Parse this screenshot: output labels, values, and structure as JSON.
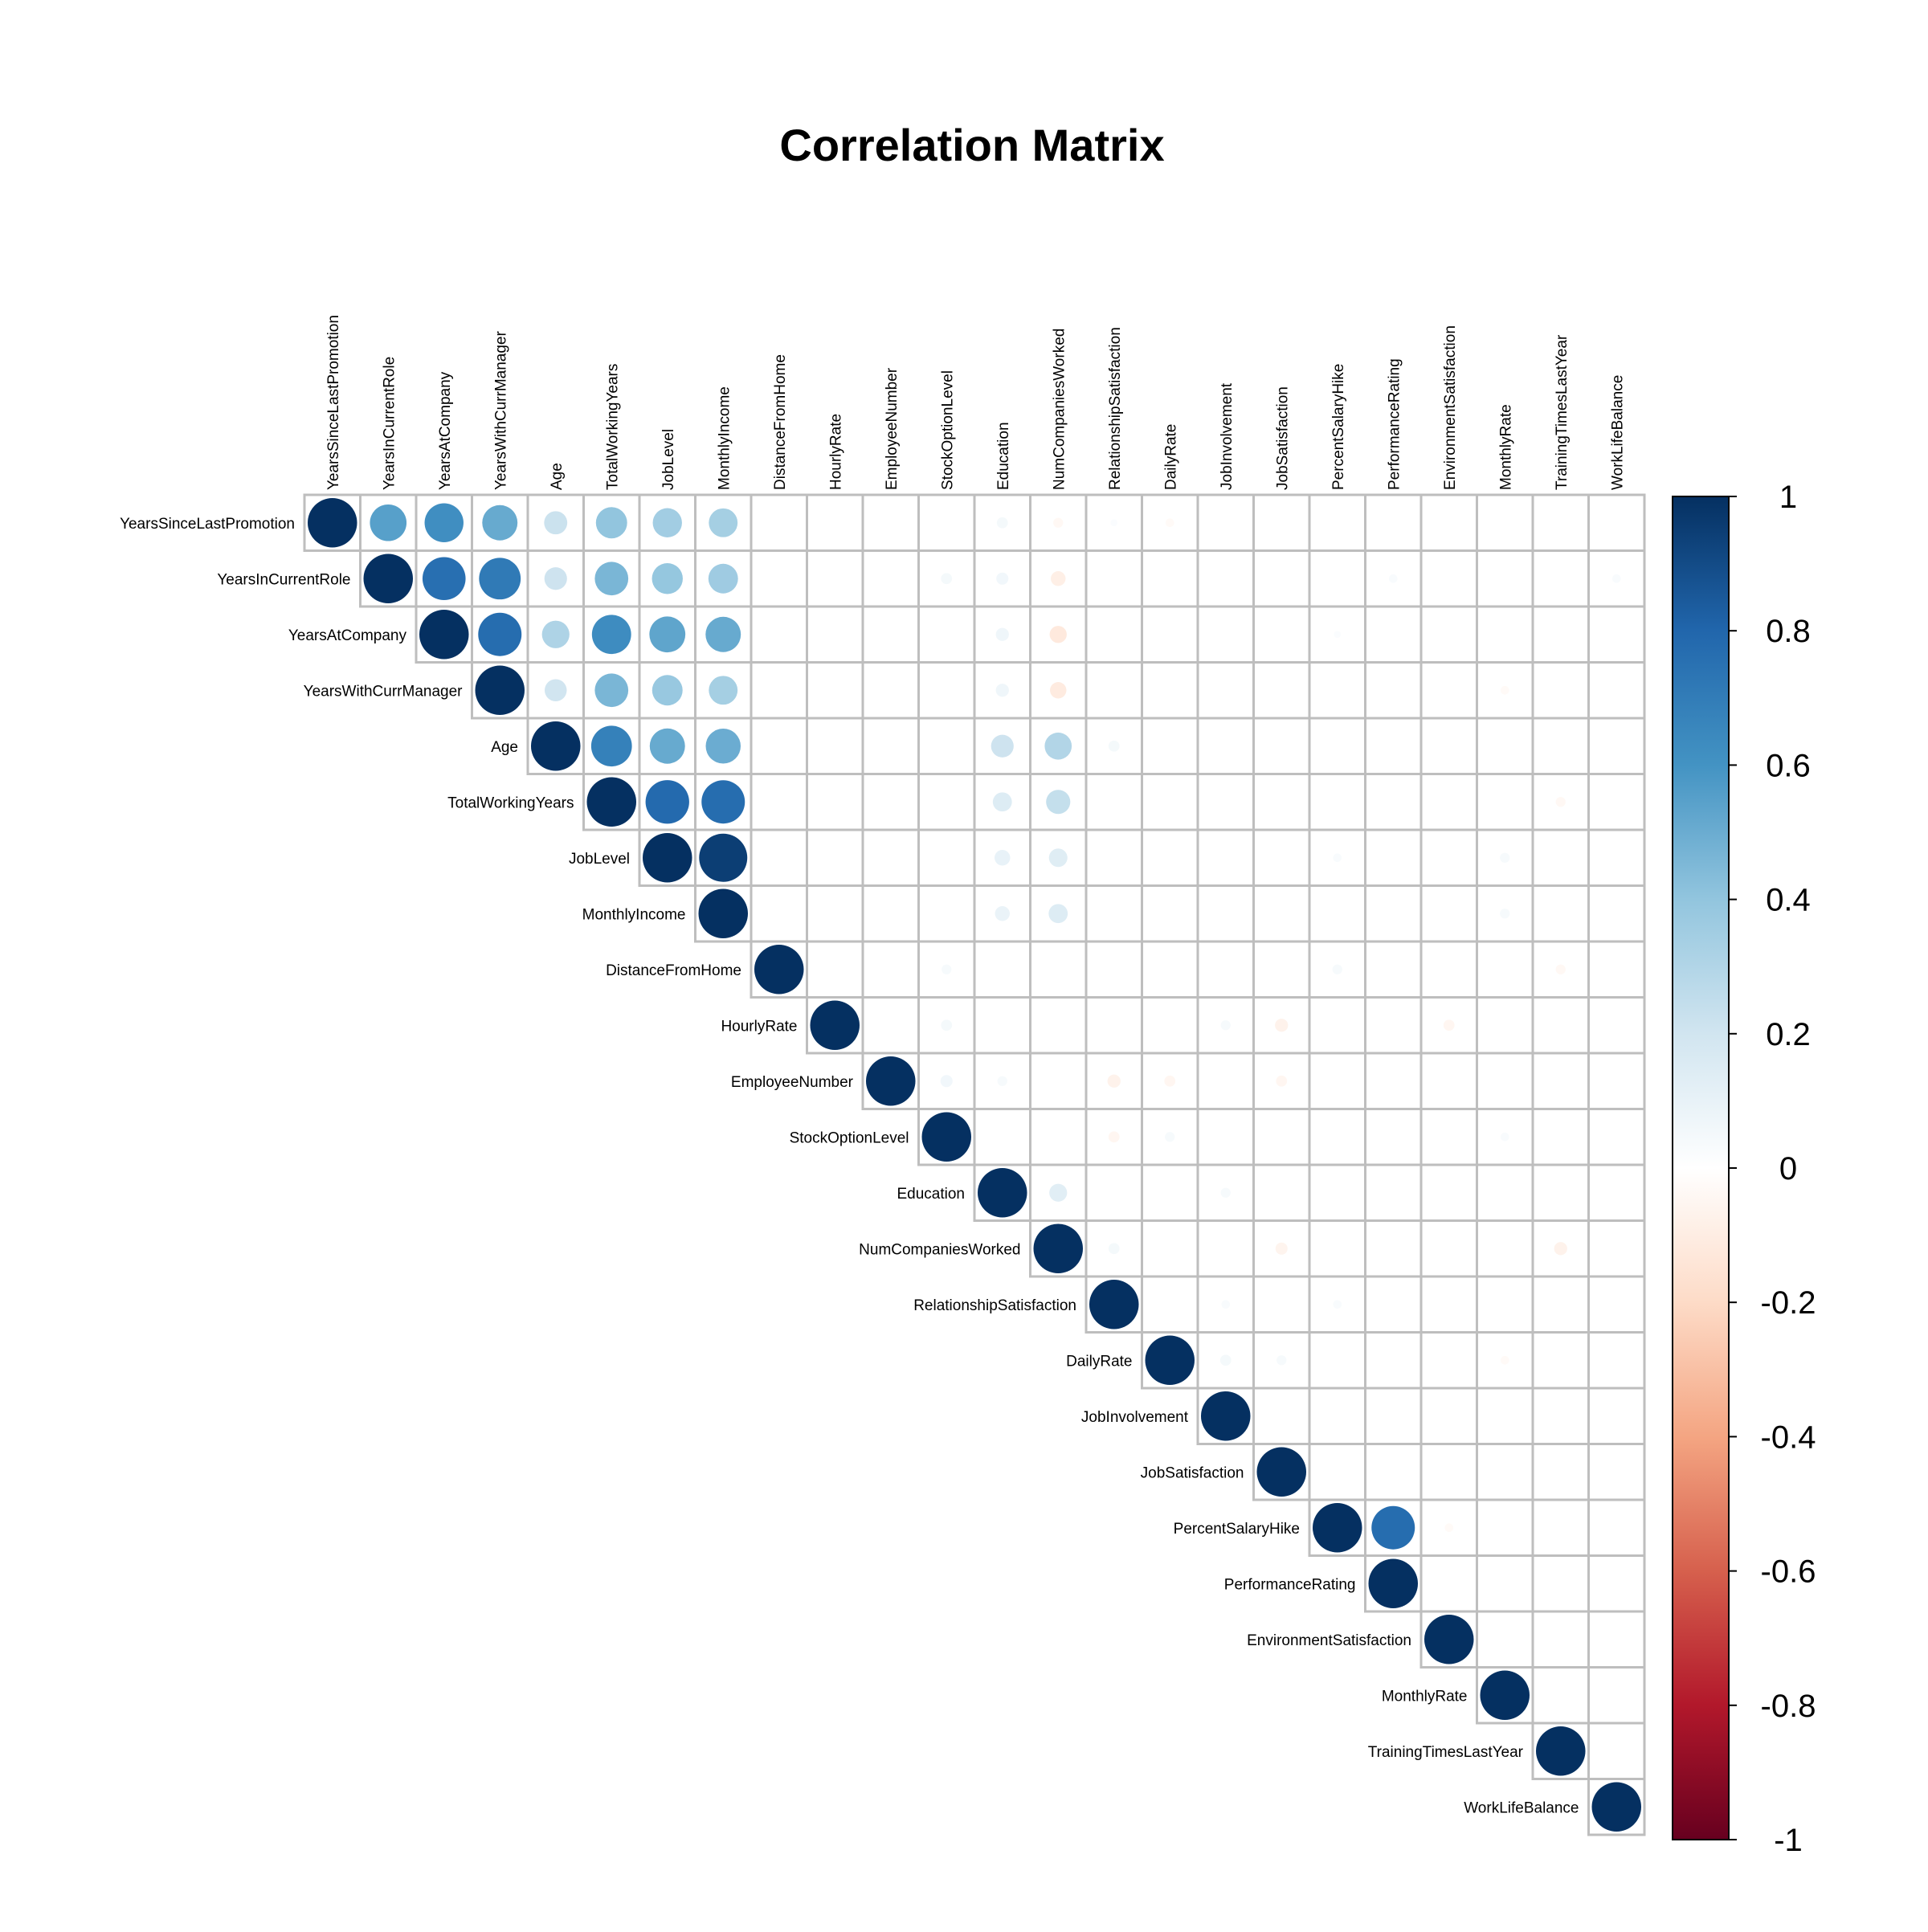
{
  "chart_data": {
    "type": "heatmap",
    "style": "circle",
    "layout": "upper-triangle",
    "title": "Correlation Matrix",
    "variables": [
      "YearsSinceLastPromotion",
      "YearsInCurrentRole",
      "YearsAtCompany",
      "YearsWithCurrManager",
      "Age",
      "TotalWorkingYears",
      "JobLevel",
      "MonthlyIncome",
      "DistanceFromHome",
      "HourlyRate",
      "EmployeeNumber",
      "StockOptionLevel",
      "Education",
      "NumCompaniesWorked",
      "RelationshipSatisfaction",
      "DailyRate",
      "JobInvolvement",
      "JobSatisfaction",
      "PercentSalaryHike",
      "PerformanceRating",
      "EnvironmentSatisfaction",
      "MonthlyRate",
      "TrainingTimesLastYear",
      "WorkLifeBalance"
    ],
    "correlations": [
      {
        "row": 0,
        "col": 1,
        "value": 0.55
      },
      {
        "row": 0,
        "col": 2,
        "value": 0.62
      },
      {
        "row": 0,
        "col": 3,
        "value": 0.51
      },
      {
        "row": 0,
        "col": 4,
        "value": 0.22
      },
      {
        "row": 0,
        "col": 5,
        "value": 0.4
      },
      {
        "row": 0,
        "col": 6,
        "value": 0.35
      },
      {
        "row": 0,
        "col": 7,
        "value": 0.34
      },
      {
        "row": 0,
        "col": 12,
        "value": 0.05
      },
      {
        "row": 0,
        "col": 13,
        "value": -0.04
      },
      {
        "row": 0,
        "col": 14,
        "value": 0.02
      },
      {
        "row": 0,
        "col": 15,
        "value": -0.03
      },
      {
        "row": 1,
        "col": 2,
        "value": 0.76
      },
      {
        "row": 1,
        "col": 3,
        "value": 0.71
      },
      {
        "row": 1,
        "col": 4,
        "value": 0.21
      },
      {
        "row": 1,
        "col": 5,
        "value": 0.46
      },
      {
        "row": 1,
        "col": 6,
        "value": 0.39
      },
      {
        "row": 1,
        "col": 7,
        "value": 0.36
      },
      {
        "row": 1,
        "col": 11,
        "value": 0.05
      },
      {
        "row": 1,
        "col": 12,
        "value": 0.06
      },
      {
        "row": 1,
        "col": 13,
        "value": -0.09
      },
      {
        "row": 1,
        "col": 19,
        "value": 0.03
      },
      {
        "row": 1,
        "col": 23,
        "value": 0.03
      },
      {
        "row": 2,
        "col": 3,
        "value": 0.77
      },
      {
        "row": 2,
        "col": 4,
        "value": 0.31
      },
      {
        "row": 2,
        "col": 5,
        "value": 0.63
      },
      {
        "row": 2,
        "col": 6,
        "value": 0.53
      },
      {
        "row": 2,
        "col": 7,
        "value": 0.51
      },
      {
        "row": 2,
        "col": 12,
        "value": 0.07
      },
      {
        "row": 2,
        "col": 13,
        "value": -0.12
      },
      {
        "row": 2,
        "col": 18,
        "value": 0.02
      },
      {
        "row": 3,
        "col": 4,
        "value": 0.2
      },
      {
        "row": 3,
        "col": 5,
        "value": 0.46
      },
      {
        "row": 3,
        "col": 6,
        "value": 0.38
      },
      {
        "row": 3,
        "col": 7,
        "value": 0.34
      },
      {
        "row": 3,
        "col": 12,
        "value": 0.07
      },
      {
        "row": 3,
        "col": 13,
        "value": -0.11
      },
      {
        "row": 3,
        "col": 21,
        "value": -0.03
      },
      {
        "row": 4,
        "col": 5,
        "value": 0.68
      },
      {
        "row": 4,
        "col": 6,
        "value": 0.51
      },
      {
        "row": 4,
        "col": 7,
        "value": 0.5
      },
      {
        "row": 4,
        "col": 12,
        "value": 0.21
      },
      {
        "row": 4,
        "col": 13,
        "value": 0.3
      },
      {
        "row": 4,
        "col": 14,
        "value": 0.05
      },
      {
        "row": 5,
        "col": 6,
        "value": 0.78
      },
      {
        "row": 5,
        "col": 7,
        "value": 0.77
      },
      {
        "row": 5,
        "col": 12,
        "value": 0.15
      },
      {
        "row": 5,
        "col": 13,
        "value": 0.24
      },
      {
        "row": 5,
        "col": 22,
        "value": -0.04
      },
      {
        "row": 6,
        "col": 7,
        "value": 0.95
      },
      {
        "row": 6,
        "col": 12,
        "value": 0.1
      },
      {
        "row": 6,
        "col": 13,
        "value": 0.14
      },
      {
        "row": 6,
        "col": 18,
        "value": 0.03
      },
      {
        "row": 6,
        "col": 21,
        "value": 0.04
      },
      {
        "row": 7,
        "col": 12,
        "value": 0.09
      },
      {
        "row": 7,
        "col": 13,
        "value": 0.15
      },
      {
        "row": 7,
        "col": 21,
        "value": 0.04
      },
      {
        "row": 8,
        "col": 11,
        "value": 0.04
      },
      {
        "row": 8,
        "col": 18,
        "value": 0.04
      },
      {
        "row": 8,
        "col": 22,
        "value": -0.04
      },
      {
        "row": 9,
        "col": 11,
        "value": 0.05
      },
      {
        "row": 9,
        "col": 16,
        "value": 0.04
      },
      {
        "row": 9,
        "col": 17,
        "value": -0.07
      },
      {
        "row": 9,
        "col": 20,
        "value": -0.05
      },
      {
        "row": 10,
        "col": 11,
        "value": 0.06
      },
      {
        "row": 10,
        "col": 12,
        "value": 0.04
      },
      {
        "row": 10,
        "col": 14,
        "value": -0.07
      },
      {
        "row": 10,
        "col": 15,
        "value": -0.05
      },
      {
        "row": 10,
        "col": 17,
        "value": -0.05
      },
      {
        "row": 11,
        "col": 14,
        "value": -0.05
      },
      {
        "row": 11,
        "col": 15,
        "value": 0.04
      },
      {
        "row": 11,
        "col": 21,
        "value": 0.03
      },
      {
        "row": 12,
        "col": 13,
        "value": 0.13
      },
      {
        "row": 12,
        "col": 16,
        "value": 0.04
      },
      {
        "row": 13,
        "col": 14,
        "value": 0.05
      },
      {
        "row": 13,
        "col": 17,
        "value": -0.06
      },
      {
        "row": 13,
        "col": 22,
        "value": -0.07
      },
      {
        "row": 14,
        "col": 16,
        "value": 0.03
      },
      {
        "row": 14,
        "col": 18,
        "value": 0.03
      },
      {
        "row": 15,
        "col": 16,
        "value": 0.05
      },
      {
        "row": 15,
        "col": 17,
        "value": 0.04
      },
      {
        "row": 15,
        "col": 21,
        "value": -0.03
      },
      {
        "row": 18,
        "col": 19,
        "value": 0.77
      },
      {
        "row": 18,
        "col": 20,
        "value": -0.03
      }
    ],
    "colorbar": {
      "min": -1,
      "max": 1,
      "ticks": [
        "1",
        "0.8",
        "0.6",
        "0.4",
        "0.2",
        "0",
        "-0.2",
        "-0.4",
        "-0.6",
        "-0.8",
        "-1"
      ],
      "tick_values": [
        1,
        0.8,
        0.6,
        0.4,
        0.2,
        0,
        -0.2,
        -0.4,
        -0.6,
        -0.8,
        -1
      ],
      "stops": [
        "#67001F",
        "#B2182B",
        "#D6604D",
        "#F4A582",
        "#FDDBC7",
        "#FFFFFF",
        "#D1E5F0",
        "#92C5DE",
        "#4393C3",
        "#2166AC",
        "#053061"
      ]
    },
    "grid": true,
    "legend_position": "right"
  }
}
